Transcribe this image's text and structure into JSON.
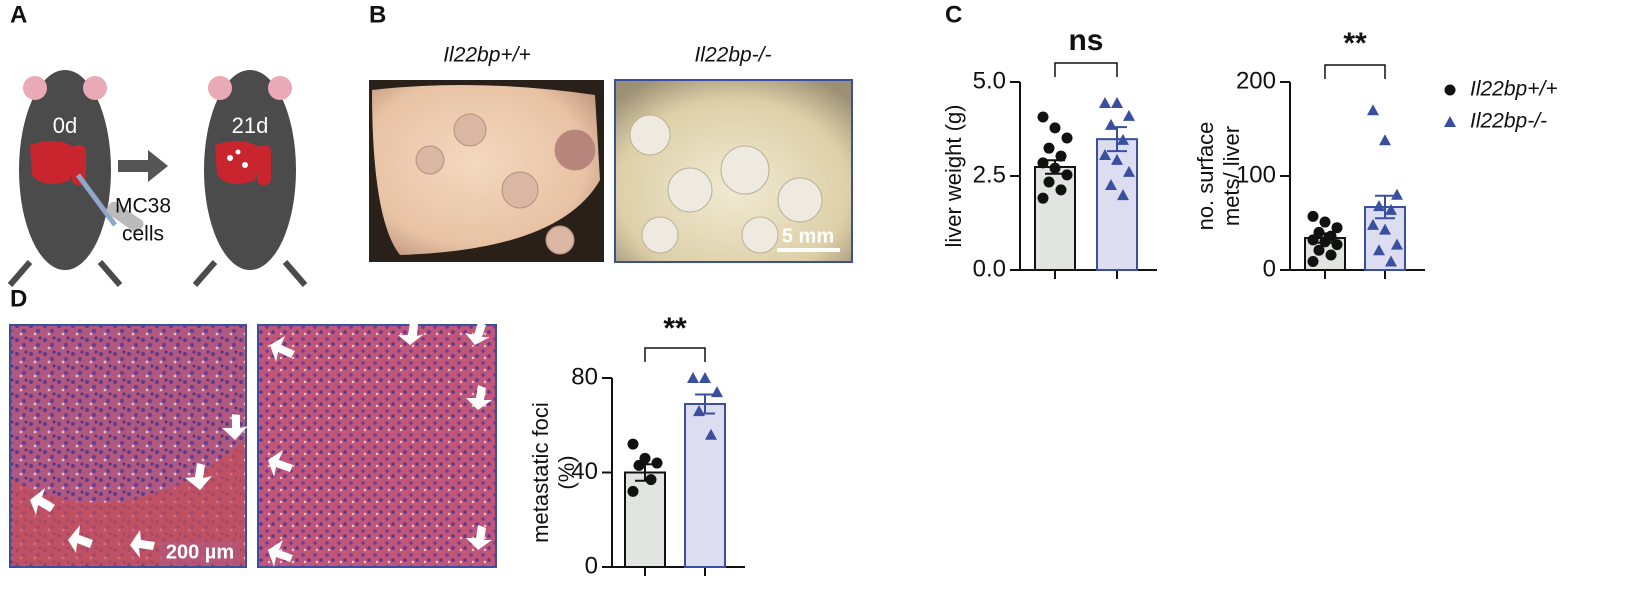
{
  "panel_labels": [
    "A",
    "B",
    "C",
    "D"
  ],
  "panel_a": {
    "day_start": "0d",
    "day_end": "21d",
    "cells": [
      "MC38",
      "cells"
    ]
  },
  "panel_b": {
    "titles": [
      "Il22bp+/+",
      "Il22bp-/-"
    ],
    "scale_bar": "5 mm"
  },
  "panel_d": {
    "scale_bar": "200 µm"
  },
  "chart_data": [
    {
      "type": "bar",
      "ylabel": [
        "liver weight (g)"
      ],
      "annotation": "ns",
      "ylim": [
        0,
        5
      ],
      "yticks": [
        {
          "value": 0,
          "label": "0.0"
        },
        {
          "value": 2.5,
          "label": "2.5"
        },
        {
          "value": 5,
          "label": "5.0"
        }
      ],
      "series": [
        {
          "color": "#e1e4e1",
          "edge": "#111111",
          "marker": "circle",
          "value": 2.74,
          "error": 0.18,
          "points": [
            4.07,
            3.78,
            3.51,
            3.24,
            3.03,
            2.85,
            2.71,
            2.53,
            2.34,
            2.13,
            1.91
          ]
        },
        {
          "color": "#dcddf0",
          "edge": "#3a4fa0",
          "marker": "triangle",
          "value": 3.48,
          "error": 0.32,
          "points": [
            4.44,
            4.44,
            4.1,
            3.86,
            3.46,
            3.06,
            2.93,
            2.61,
            2.26,
            1.99
          ]
        }
      ]
    },
    {
      "type": "bar",
      "ylabel": [
        "no. surface",
        "mets/ liver"
      ],
      "annotation": "**",
      "ylim": [
        0,
        200
      ],
      "yticks": [
        0,
        100,
        200
      ],
      "series": [
        {
          "name": "Il22bp+/+",
          "color": "#e1e4e1",
          "edge": "#111111",
          "marker": "circle",
          "value": 34,
          "error": 5,
          "points": [
            57,
            51,
            45,
            40,
            36,
            32,
            30,
            27,
            21,
            16,
            9
          ]
        },
        {
          "name": "Il22bp-/-",
          "color": "#dcddf0",
          "edge": "#3a4fa0",
          "marker": "triangle",
          "value": 67,
          "error": 12,
          "points": [
            170,
            138,
            80,
            68,
            64,
            48,
            43,
            27,
            21,
            9
          ]
        }
      ]
    },
    {
      "type": "bar",
      "ylabel": [
        "metastatic foci",
        "(%)"
      ],
      "annotation": "**",
      "ylim": [
        0,
        80
      ],
      "yticks": [
        0,
        40,
        80
      ],
      "series": [
        {
          "color": "#e1e4e1",
          "edge": "#111111",
          "marker": "circle",
          "value": 40,
          "error": 3.5,
          "points": [
            52,
            46,
            44,
            43,
            37,
            32
          ]
        },
        {
          "color": "#dcddf0",
          "edge": "#3a4fa0",
          "marker": "triangle",
          "value": 69,
          "error": 4,
          "points": [
            80,
            80,
            74,
            66,
            56
          ]
        }
      ]
    }
  ]
}
